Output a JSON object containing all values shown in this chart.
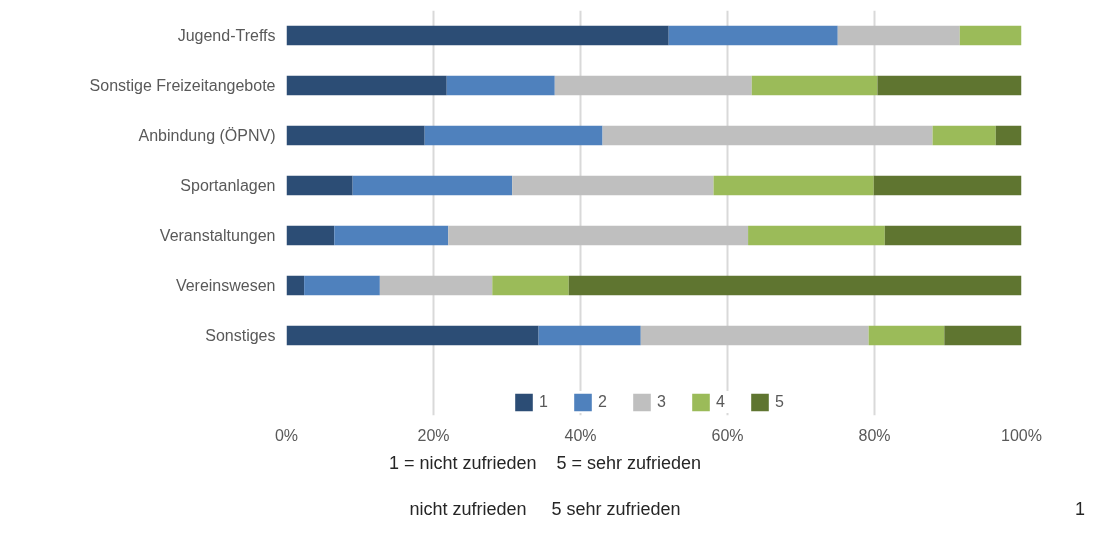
{
  "chart_data": {
    "type": "bar",
    "orientation": "horizontal",
    "stacked": true,
    "categories": [
      "Jugend-Treffs",
      "Sonstige Freizeitangebote",
      "Anbindung (ÖPNV)",
      "Sportanlagen",
      "Veranstaltungen",
      "Vereinswesen",
      "Sonstiges"
    ],
    "series": [
      {
        "name": "1",
        "color": "#2c4d75",
        "values": [
          52.0,
          21.8,
          18.8,
          9.0,
          6.5,
          2.4,
          34.3
        ]
      },
      {
        "name": "2",
        "color": "#4f81bd",
        "values": [
          23.0,
          14.7,
          24.2,
          21.7,
          15.5,
          10.3,
          13.9
        ]
      },
      {
        "name": "3",
        "color": "#bfbfbf",
        "values": [
          16.6,
          26.8,
          44.9,
          27.4,
          40.8,
          15.3,
          31.0
        ]
      },
      {
        "name": "4",
        "color": "#9bbb59",
        "values": [
          8.4,
          17.1,
          8.6,
          21.8,
          18.6,
          10.4,
          10.3
        ]
      },
      {
        "name": "5",
        "color": "#5f7530",
        "values": [
          0,
          19.6,
          3.5,
          20.1,
          18.6,
          61.6,
          10.5
        ]
      }
    ],
    "xlim": [
      0,
      100
    ],
    "xticks": [
      {
        "value": 0,
        "label": "0%"
      },
      {
        "value": 20,
        "label": "20%"
      },
      {
        "value": 40,
        "label": "40%"
      },
      {
        "value": 60,
        "label": "60%"
      },
      {
        "value": 80,
        "label": "80%"
      },
      {
        "value": 100,
        "label": "100%"
      }
    ],
    "grid": "x",
    "legend": "bottom",
    "annotations": [
      "1 = nicht zufrieden    5 = sehr zufrieden",
      "1",
      "nicht zufrieden     5 sehr zufrieden"
    ]
  }
}
